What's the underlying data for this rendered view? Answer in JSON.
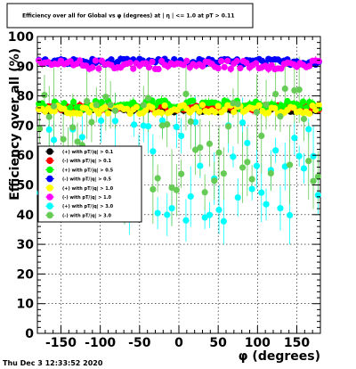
{
  "timestamp": "Thu Dec  3 12:33:52 2020",
  "chart_data": {
    "type": "scatter",
    "title": "Efficiency over all for Global vs φ (degrees) at | η | <= 1.0 at pT > 0.11",
    "xlabel": "φ (degrees)",
    "ylabel": "Efficiency over all (%)",
    "xlim": [
      -180,
      180
    ],
    "ylim": [
      0,
      100
    ],
    "xticks": [
      -150,
      -100,
      -50,
      0,
      50,
      100,
      150
    ],
    "yticks": [
      0,
      10,
      20,
      30,
      40,
      50,
      60,
      70,
      80,
      90,
      100
    ],
    "grid": true,
    "legend_position": "left-middle",
    "series": [
      {
        "name": "(+) with pT/|q| > 0.1",
        "color": "#000000",
        "base": 75.5,
        "spread": 1.0,
        "err": 1.0,
        "n": 90
      },
      {
        "name": "(-) with pT/|q| > 0.1",
        "color": "#ff0000",
        "base": 76.0,
        "spread": 1.0,
        "err": 1.0,
        "n": 90
      },
      {
        "name": "(+) with pT/|q| > 0.5",
        "color": "#00ff00",
        "base": 77.0,
        "spread": 1.5,
        "err": 1.2,
        "n": 90
      },
      {
        "name": "(-) with pT/|q| > 0.5",
        "color": "#0000ff",
        "base": 91.5,
        "spread": 1.0,
        "err": 0.8,
        "n": 90
      },
      {
        "name": "(+) with pT/|q| > 1.0",
        "color": "#ffff00",
        "base": 75.5,
        "spread": 1.5,
        "err": 1.2,
        "n": 90
      },
      {
        "name": "(-) with pT/|q| > 1.0",
        "color": "#ff00ff",
        "base": 90.5,
        "spread": 1.5,
        "err": 1.0,
        "n": 90
      },
      {
        "name": "(+) with pT/|q| > 3.0",
        "color": "#00ffff",
        "base": 55.0,
        "spread": 18.0,
        "err": 7.0,
        "n": 60
      },
      {
        "name": "(-) with pT/|q| > 3.0",
        "color": "#66cc55",
        "base": 65.0,
        "spread": 18.0,
        "err": 9.0,
        "n": 60
      }
    ]
  }
}
